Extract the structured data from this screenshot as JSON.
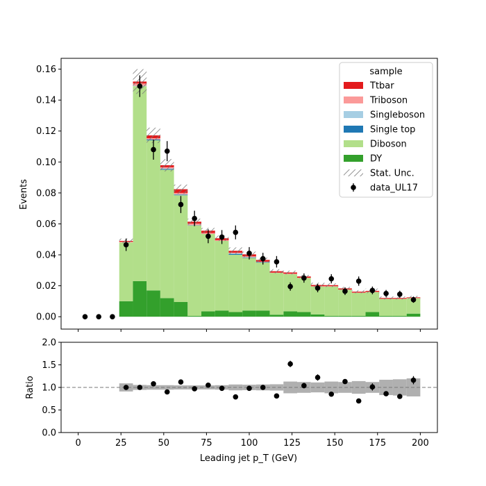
{
  "chart_data": [
    {
      "type": "bar",
      "panel": "main",
      "stacked": true,
      "xlabel": "Leading jet  p_T (GeV)",
      "ylabel": "Events",
      "xlim": [
        -10,
        210
      ],
      "ylim": [
        -0.008,
        0.167
      ],
      "xticks": [
        0,
        25,
        50,
        75,
        100,
        125,
        150,
        175,
        200
      ],
      "yticks": [
        "0.00",
        "0.02",
        "0.04",
        "0.06",
        "0.08",
        "0.10",
        "0.12",
        "0.14",
        "0.16"
      ],
      "bin_edges": [
        0,
        8,
        16,
        24,
        32,
        40,
        48,
        56,
        64,
        72,
        80,
        88,
        96,
        104,
        112,
        120,
        128,
        136,
        144,
        152,
        160,
        168,
        176,
        184,
        192,
        200
      ],
      "series": [
        {
          "name": "DY",
          "color": "#33a02c",
          "values": [
            0,
            0,
            0,
            0.01,
            0.023,
            0.017,
            0.012,
            0.0095,
            0.0005,
            0.0035,
            0.004,
            0.003,
            0.004,
            0.004,
            0.0013,
            0.0035,
            0.003,
            0.0015,
            0.0005,
            0.0005,
            0.0005,
            0.003,
            0.0005,
            0.0005,
            0.002
          ]
        },
        {
          "name": "Diboson",
          "color": "#b2df8a",
          "values": [
            0,
            0,
            0,
            0.038,
            0.126,
            0.097,
            0.083,
            0.069,
            0.0585,
            0.05,
            0.045,
            0.037,
            0.034,
            0.031,
            0.027,
            0.024,
            0.022,
            0.018,
            0.019,
            0.017,
            0.015,
            0.013,
            0.011,
            0.011,
            0.01
          ]
        },
        {
          "name": "Single top",
          "color": "#1f78b4",
          "values": [
            0,
            0,
            0,
            0,
            0,
            0.0006,
            0.0005,
            0.0004,
            0.0002,
            0,
            0,
            0.0006,
            0.0003,
            0.0003,
            0,
            0,
            0,
            0,
            0,
            0,
            0,
            0,
            0,
            0,
            0
          ]
        },
        {
          "name": "Singleboson",
          "color": "#a6cee3",
          "values": [
            0,
            0,
            0,
            0,
            0.0003,
            0,
            0.0003,
            0.0002,
            0,
            0,
            0,
            0.0004,
            0.0002,
            0,
            0,
            0,
            0,
            0,
            0,
            0,
            0,
            0,
            0,
            0,
            0
          ]
        },
        {
          "name": "Triboson",
          "color": "#fb9a99",
          "values": [
            0,
            0,
            0,
            0.0005,
            0.0014,
            0.0008,
            0.0008,
            0.0009,
            0.001,
            0.0006,
            0.0005,
            0.0004,
            0.0005,
            0.0003,
            0.0002,
            0.0003,
            0.0002,
            0.0002,
            0.0002,
            0.0001,
            0.0001,
            0.0001,
            0.0001,
            0.0001,
            0.0001
          ]
        },
        {
          "name": "Ttbar",
          "color": "#e31a1c",
          "values": [
            0,
            0,
            0,
            0.0005,
            0.0013,
            0.0018,
            0.0013,
            0.0024,
            0.0012,
            0.0015,
            0.0012,
            0.0012,
            0.0013,
            0.0011,
            0.0009,
            0.0008,
            0.0008,
            0.0008,
            0.0007,
            0.0007,
            0.0006,
            0.0006,
            0.0005,
            0.0005,
            0.0004
          ]
        }
      ],
      "stat_unc": {
        "name": "Stat. Unc.",
        "values": [
          0,
          0,
          0,
          0.0015,
          0.008,
          0.005,
          0.004,
          0.003,
          0.002,
          0.0018,
          0.0018,
          0.0022,
          0.0018,
          0.0015,
          0.0013,
          0.0012,
          0.001,
          0.0015,
          0.0012,
          0.001,
          0.001,
          0.0015,
          0.001,
          0.001,
          0.001
        ]
      },
      "data": {
        "name": "data_UL17",
        "x": [
          4,
          12,
          20,
          28,
          36,
          44,
          52,
          60,
          68,
          76,
          84,
          92,
          100,
          108,
          116,
          124,
          132,
          140,
          148,
          156,
          164,
          172,
          180,
          188,
          196
        ],
        "y": [
          0,
          0,
          0,
          0.0465,
          0.149,
          0.108,
          0.107,
          0.0725,
          0.0635,
          0.052,
          0.0515,
          0.0545,
          0.041,
          0.0375,
          0.0355,
          0.0195,
          0.025,
          0.0185,
          0.0245,
          0.0165,
          0.023,
          0.017,
          0.015,
          0.0145,
          0.011
        ],
        "err": [
          0,
          0,
          0,
          0.004,
          0.007,
          0.0065,
          0.0065,
          0.0055,
          0.005,
          0.0045,
          0.0045,
          0.0045,
          0.004,
          0.0038,
          0.0037,
          0.0027,
          0.003,
          0.0027,
          0.003,
          0.0025,
          0.003,
          0.0025,
          0.0023,
          0.0023,
          0.002
        ]
      },
      "legend": {
        "title": "sample",
        "placement": "upper-right"
      }
    },
    {
      "type": "scatter",
      "panel": "ratio",
      "xlabel": "Leading jet  p_T (GeV)",
      "ylabel": "Ratio",
      "xlim": [
        -10,
        210
      ],
      "ylim": [
        0.0,
        2.0
      ],
      "xticks": [
        0,
        25,
        50,
        75,
        100,
        125,
        150,
        175,
        200
      ],
      "yticks": [
        "0.0",
        "0.5",
        "1.0",
        "1.5",
        "2.0"
      ],
      "reference_line": 1.0,
      "unc_band": [
        0,
        0,
        0,
        0.09,
        0.055,
        0.05,
        0.05,
        0.045,
        0.045,
        0.045,
        0.05,
        0.065,
        0.06,
        0.065,
        0.07,
        0.13,
        0.12,
        0.11,
        0.13,
        0.12,
        0.14,
        0.12,
        0.17,
        0.18,
        0.2
      ],
      "x": [
        28,
        36,
        44,
        52,
        60,
        68,
        76,
        84,
        92,
        100,
        108,
        116,
        124,
        132,
        140,
        148,
        156,
        164,
        172,
        180,
        188,
        196
      ],
      "y": [
        1.0,
        1.0,
        1.08,
        0.9,
        1.12,
        0.97,
        1.05,
        0.98,
        0.79,
        0.98,
        1.0,
        0.81,
        1.52,
        1.04,
        1.22,
        0.85,
        1.13,
        0.7,
        1.01,
        0.86,
        0.8,
        1.16
      ],
      "err": [
        0.03,
        0.03,
        0.03,
        0.03,
        0.03,
        0.03,
        0.04,
        0.04,
        0.03,
        0.04,
        0.04,
        0.04,
        0.07,
        0.06,
        0.07,
        0.05,
        0.05,
        0.04,
        0.08,
        0.05,
        0.05,
        0.09
      ]
    }
  ]
}
